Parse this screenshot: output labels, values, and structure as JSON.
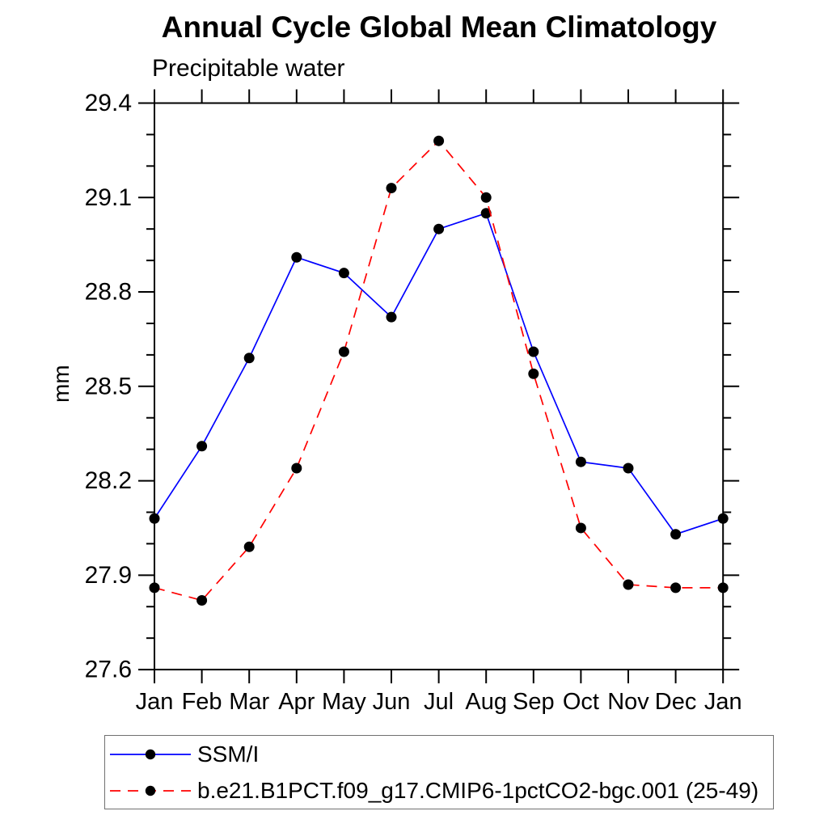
{
  "chart": {
    "title": "Annual Cycle Global Mean Climatology",
    "subtitle": "Precipitable water",
    "ylabel": "mm"
  },
  "chart_data": {
    "type": "line",
    "title": "Annual Cycle Global Mean Climatology",
    "subtitle": "Precipitable water",
    "xlabel": "",
    "ylabel": "mm",
    "categories": [
      "Jan",
      "Feb",
      "Mar",
      "Apr",
      "May",
      "Jun",
      "Jul",
      "Aug",
      "Sep",
      "Oct",
      "Nov",
      "Dec",
      "Jan"
    ],
    "series": [
      {
        "name": "SSM/I",
        "color": "#0000ff",
        "style": "solid",
        "marker": "filled-circle",
        "marker_color": "#000000",
        "values": [
          28.08,
          28.31,
          28.59,
          28.91,
          28.86,
          28.72,
          29.0,
          29.05,
          28.61,
          28.26,
          28.24,
          28.03,
          28.08
        ]
      },
      {
        "name": "b.e21.B1PCT.f09_g17.CMIP6-1pctCO2-bgc.001 (25-49)",
        "color": "#ff0000",
        "style": "dashed",
        "marker": "filled-circle",
        "marker_color": "#000000",
        "values": [
          27.86,
          27.82,
          27.99,
          28.24,
          28.61,
          29.13,
          29.28,
          29.1,
          28.54,
          28.05,
          27.87,
          27.86,
          27.86
        ]
      }
    ],
    "ylim": [
      27.6,
      29.4
    ],
    "ytick_step": 0.3,
    "ytick_minor_step": 0.1,
    "ytick_labels": [
      "27.6",
      "27.9",
      "28.2",
      "28.5",
      "28.8",
      "29.1",
      "29.4"
    ],
    "grid": false,
    "legend_position": "bottom-left-box",
    "axis_color": "#000000"
  }
}
